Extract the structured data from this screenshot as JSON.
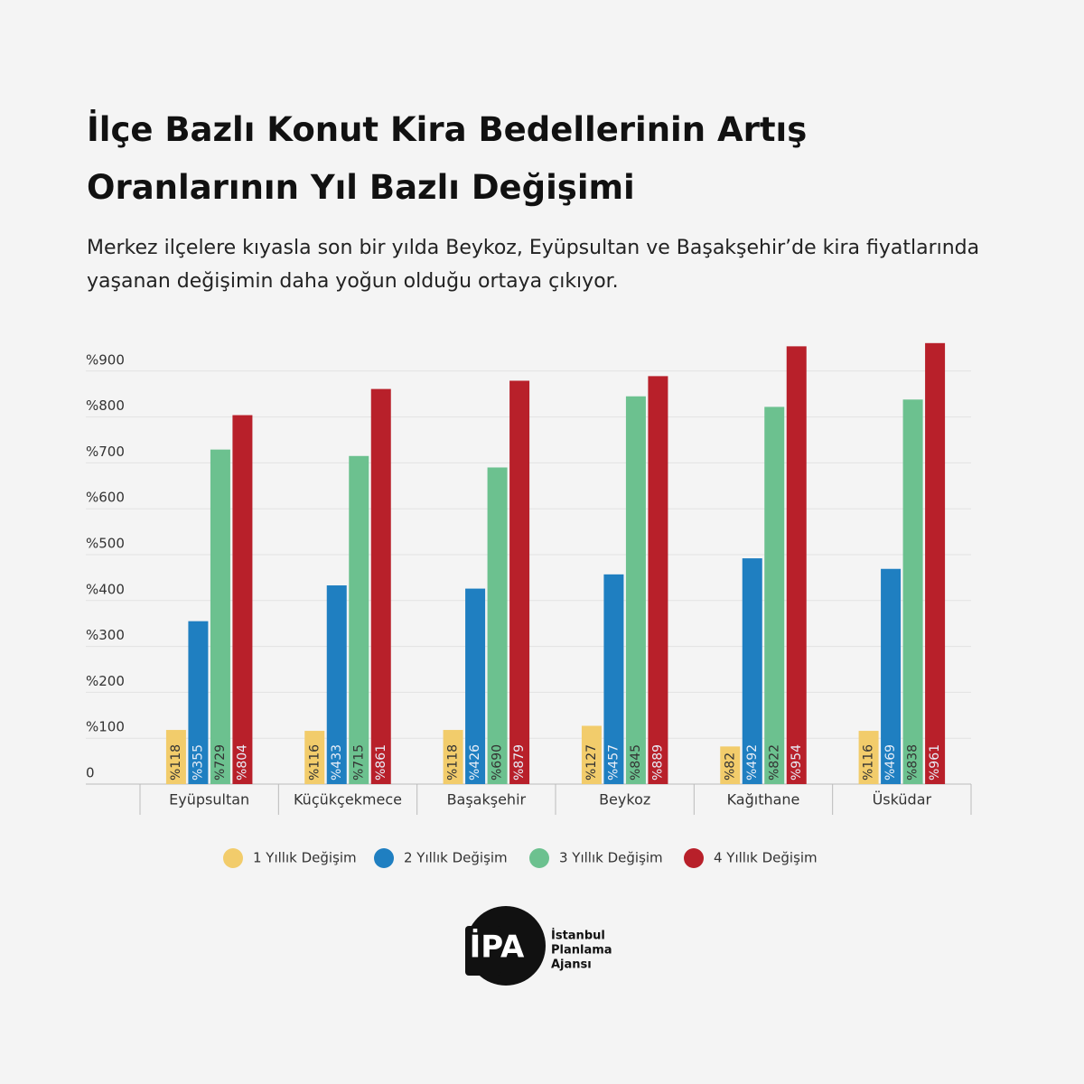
{
  "chart_data": {
    "type": "bar",
    "title": "İlçe Bazlı Konut Kira Bedellerinin Artış Oranlarının Yıl Bazlı Değişimi",
    "subtitle": "Merkez ilçelere kıyasla son bir yılda Beykoz, Eyüpsultan ve Başakşehir’de kira fiyatlarında yaşanan değişimin daha yoğun olduğu ortaya çıkıyor.",
    "categories": [
      "Eyüpsultan",
      "Küçükçekmece",
      "Başakşehir",
      "Beykoz",
      "Kağıthane",
      "Üsküdar"
    ],
    "series": [
      {
        "name": "1 Yıllık Değişim",
        "color": "#f2cc6b",
        "values": [
          118,
          116,
          118,
          127,
          82,
          116
        ],
        "value_labels": [
          "%118",
          "%116",
          "%118",
          "%127",
          "%82",
          "%116"
        ]
      },
      {
        "name": "2 Yıllık Değişim",
        "color": "#1f7fc1",
        "values": [
          355,
          433,
          426,
          457,
          492,
          469
        ],
        "value_labels": [
          "%355",
          "%433",
          "%426",
          "%457",
          "%492",
          "%469"
        ]
      },
      {
        "name": "3 Yıllık Değişim",
        "color": "#6cc18f",
        "values": [
          729,
          715,
          690,
          845,
          822,
          838
        ],
        "value_labels": [
          "%729",
          "%715",
          "%690",
          "%845",
          "%822",
          "%838"
        ]
      },
      {
        "name": "4 Yıllık Değişim",
        "color": "#b8202a",
        "values": [
          804,
          861,
          879,
          889,
          954,
          961
        ],
        "value_labels": [
          "%804",
          "%861",
          "%879",
          "%889",
          "%954",
          "%961"
        ]
      }
    ],
    "ylim": [
      0,
      1000
    ],
    "yticks": [
      0,
      {
        "value": 100,
        "label": "%100"
      },
      {
        "value": 200,
        "label": "%200"
      },
      {
        "value": 300,
        "label": "%300"
      },
      {
        "value": 400,
        "label": "%400"
      },
      {
        "value": 500,
        "label": "%500"
      },
      {
        "value": 600,
        "label": "%600"
      },
      {
        "value": 700,
        "label": "%700"
      },
      {
        "value": 800,
        "label": "%800"
      },
      {
        "value": 900,
        "label": "%900"
      }
    ],
    "grid": true
  },
  "logo": {
    "mark": "İPA",
    "lines": [
      "İstanbul",
      "Planlama",
      "Ajansı"
    ]
  }
}
